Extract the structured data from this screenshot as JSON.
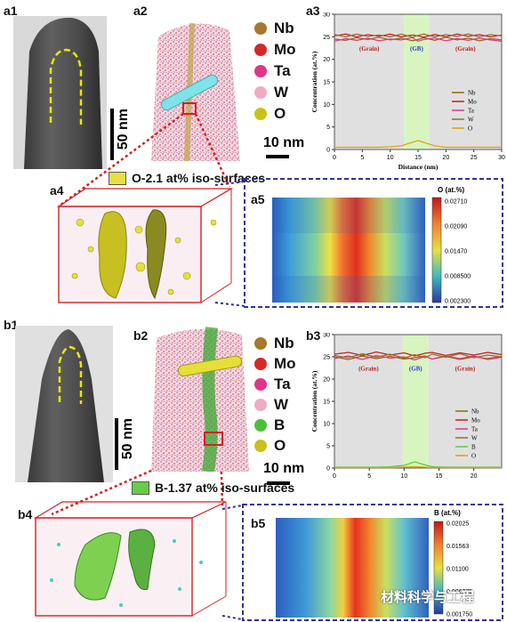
{
  "panels": {
    "a1": "a1",
    "a2": "a2",
    "a3": "a3",
    "a4": "a4",
    "a5": "a5",
    "b1": "b1",
    "b2": "b2",
    "b3": "b3",
    "b4": "b4",
    "b5": "b5"
  },
  "scalebars": {
    "a1": "50 nm",
    "a2": "10 nm",
    "b1": "50 nm",
    "b2": "10 nm"
  },
  "legend_a2": [
    {
      "label": "Nb",
      "color": "#a8782e"
    },
    {
      "label": "Mo",
      "color": "#d62828"
    },
    {
      "label": "Ta",
      "color": "#e0368a"
    },
    {
      "label": "W",
      "color": "#f1a9c4"
    },
    {
      "label": "O",
      "color": "#c9c21a"
    }
  ],
  "legend_b2": [
    {
      "label": "Nb",
      "color": "#a8782e"
    },
    {
      "label": "Mo",
      "color": "#d62828"
    },
    {
      "label": "Ta",
      "color": "#e0368a"
    },
    {
      "label": "W",
      "color": "#f1a9c4"
    },
    {
      "label": "B",
      "color": "#4fbf3a"
    },
    {
      "label": "O",
      "color": "#c9c21a"
    }
  ],
  "iso_a4": {
    "label": "O-2.1 at% iso-surfaces",
    "color": "#e6e040"
  },
  "iso_b4": {
    "label": "B-1.37 at% iso-surfaces",
    "color": "#67cc4a"
  },
  "chart_data": [
    {
      "id": "a3",
      "type": "line",
      "xlabel": "Distance (nm)",
      "ylabel": "Concentration (at.%)",
      "xlim": [
        0,
        30
      ],
      "ylim": [
        0,
        30
      ],
      "xticks": [
        0,
        5,
        10,
        15,
        20,
        25,
        30
      ],
      "yticks": [
        0,
        5,
        10,
        15,
        20,
        25,
        30
      ],
      "regions": [
        {
          "label": "(Grain)",
          "x": [
            0,
            12.5
          ],
          "color": "#e0e0e0"
        },
        {
          "label": "(GB)",
          "x": [
            12.5,
            17
          ],
          "color": "#d8f5c0"
        },
        {
          "label": "(Grain)",
          "x": [
            17,
            30
          ],
          "color": "#e0e0e0"
        }
      ],
      "x": [
        0,
        2,
        4,
        6,
        8,
        10,
        12,
        14,
        15,
        16,
        18,
        20,
        22,
        24,
        26,
        28,
        30
      ],
      "series": [
        {
          "name": "Nb",
          "color": "#8a6a10",
          "values": [
            24.5,
            24.2,
            24.8,
            24.4,
            24.9,
            24.3,
            24.7,
            24.1,
            24.4,
            24.8,
            24.2,
            24.9,
            24.3,
            24.7,
            24.1,
            24.6,
            24.3
          ]
        },
        {
          "name": "Mo",
          "color": "#c41e1e",
          "values": [
            25.2,
            25.6,
            25.0,
            25.5,
            25.1,
            25.6,
            25.0,
            25.4,
            25.2,
            24.9,
            25.5,
            25.0,
            25.6,
            25.1,
            25.5,
            25.0,
            25.4
          ]
        },
        {
          "name": "Ta",
          "color": "#e0368a",
          "values": [
            24.0,
            24.6,
            24.2,
            24.7,
            24.1,
            24.5,
            24.3,
            24.8,
            24.0,
            24.4,
            24.7,
            24.1,
            24.6,
            24.2,
            24.7,
            24.3,
            24.0
          ]
        },
        {
          "name": "W",
          "color": "#9a6a2a",
          "values": [
            25.5,
            25.0,
            25.6,
            25.1,
            25.4,
            25.0,
            25.6,
            24.9,
            25.3,
            25.6,
            25.0,
            25.5,
            25.1,
            25.6,
            25.0,
            25.5,
            25.2
          ]
        },
        {
          "name": "O",
          "color": "#d9a400",
          "values": [
            0.5,
            0.5,
            0.5,
            0.5,
            0.5,
            0.6,
            0.8,
            1.6,
            2.0,
            1.6,
            0.8,
            0.5,
            0.5,
            0.5,
            0.5,
            0.5,
            0.5
          ]
        }
      ]
    },
    {
      "id": "b3",
      "type": "line",
      "xlabel": "",
      "ylabel": "Concentration (at.%)",
      "xlim": [
        0,
        24
      ],
      "ylim": [
        0,
        30
      ],
      "xticks": [
        0,
        5,
        10,
        15,
        20
      ],
      "yticks": [
        0,
        5,
        10,
        15,
        20,
        25,
        30
      ],
      "regions": [
        {
          "label": "(Grain)",
          "x": [
            0,
            9.8
          ],
          "color": "#e0e0e0"
        },
        {
          "label": "(GB)",
          "x": [
            9.8,
            13.5
          ],
          "color": "#d8f5c0"
        },
        {
          "label": "(Grain)",
          "x": [
            13.5,
            24
          ],
          "color": "#e0e0e0"
        }
      ],
      "x": [
        0,
        2,
        4,
        6,
        8,
        10,
        11.5,
        13,
        14,
        16,
        18,
        20,
        22,
        24
      ],
      "series": [
        {
          "name": "Nb",
          "color": "#8a6a10",
          "values": [
            25.0,
            24.4,
            25.2,
            24.6,
            25.1,
            24.5,
            24.8,
            25.2,
            24.5,
            25.1,
            24.4,
            25.0,
            24.6,
            25.1
          ]
        },
        {
          "name": "Mo",
          "color": "#c41e1e",
          "values": [
            25.6,
            26.0,
            25.3,
            26.1,
            25.4,
            25.9,
            25.2,
            25.8,
            26.0,
            25.3,
            25.9,
            25.4,
            26.0,
            25.5
          ]
        },
        {
          "name": "Ta",
          "color": "#e0368a",
          "values": [
            24.6,
            25.2,
            24.4,
            25.3,
            24.7,
            25.0,
            24.3,
            25.1,
            24.5,
            25.2,
            24.6,
            25.2,
            24.4,
            24.9
          ]
        },
        {
          "name": "W",
          "color": "#9a6a2a",
          "values": [
            25.3,
            24.8,
            25.7,
            24.9,
            25.6,
            24.7,
            25.5,
            24.8,
            25.6,
            24.9,
            25.7,
            24.8,
            25.4,
            25.0
          ]
        },
        {
          "name": "B",
          "color": "#5ccc3c",
          "values": [
            0.2,
            0.2,
            0.2,
            0.2,
            0.3,
            0.6,
            1.4,
            0.7,
            0.3,
            0.2,
            0.2,
            0.2,
            0.2,
            0.2
          ]
        },
        {
          "name": "O",
          "color": "#d9a400",
          "values": [
            0.1,
            0.1,
            0.1,
            0.1,
            0.1,
            0.2,
            0.3,
            0.2,
            0.1,
            0.1,
            0.1,
            0.1,
            0.1,
            0.1
          ]
        }
      ]
    },
    {
      "id": "a5",
      "type": "heatmap",
      "title": "O (at.%)",
      "colorbar_ticks": [
        "0.02710",
        "0.02090",
        "0.01470",
        "0.008500",
        "0.002300"
      ]
    },
    {
      "id": "b5",
      "type": "heatmap",
      "title": "B (at.%)",
      "colorbar_ticks": [
        "0.02025",
        "0.01563",
        "0.01100",
        "0.006375",
        "0.001750"
      ]
    }
  ],
  "watermark": "材料科学与工程"
}
